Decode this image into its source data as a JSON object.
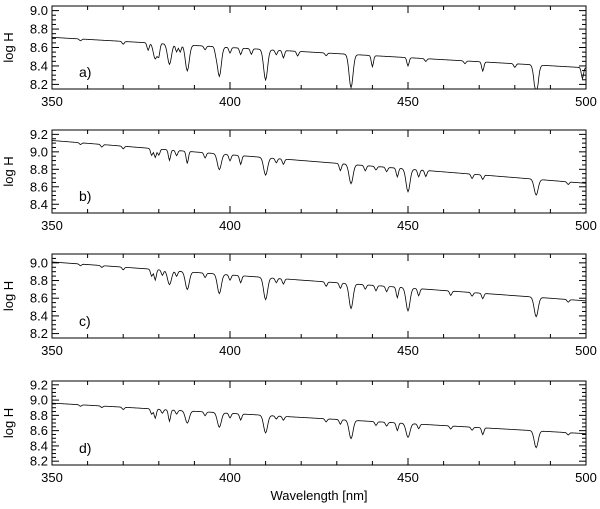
{
  "figure": {
    "xlabel": "Wavelength [nm]"
  },
  "chart_data": [
    {
      "type": "line",
      "panel_label": "a)",
      "ylabel": "log H",
      "xlim": [
        350,
        500
      ],
      "ylim": [
        8.15,
        9.05
      ],
      "yticks": [
        8.2,
        8.4,
        8.6,
        8.8,
        9.0
      ],
      "ytick_labels": [
        "8.2",
        "8.4",
        "8.6",
        "8.8",
        "9.0"
      ],
      "xticks": [
        350,
        400,
        450,
        500
      ],
      "xtick_labels": [
        "350",
        "400",
        "450",
        "500"
      ],
      "continuum": {
        "start": [
          350,
          8.71
        ],
        "end": [
          500,
          8.38
        ]
      },
      "lines": [
        [
          358,
          0.02
        ],
        [
          370,
          0.03
        ],
        [
          377,
          0.08
        ],
        [
          379,
          0.17
        ],
        [
          380,
          0.12
        ],
        [
          383,
          0.22
        ],
        [
          385,
          0.08
        ],
        [
          386,
          0.08
        ],
        [
          388,
          0.28
        ],
        [
          393,
          0.04
        ],
        [
          396,
          0.05
        ],
        [
          397,
          0.32
        ],
        [
          400,
          0.06
        ],
        [
          403,
          0.07
        ],
        [
          406,
          0.06
        ],
        [
          410,
          0.33
        ],
        [
          413,
          0.05
        ],
        [
          415,
          0.08
        ],
        [
          419,
          0.05
        ],
        [
          427,
          0.03
        ],
        [
          434,
          0.36
        ],
        [
          440,
          0.12
        ],
        [
          450,
          0.09
        ],
        [
          455,
          0.03
        ],
        [
          466,
          0.03
        ],
        [
          471,
          0.1
        ],
        [
          480,
          0.04
        ],
        [
          486,
          0.33
        ],
        [
          499,
          0.12
        ]
      ]
    },
    {
      "type": "line",
      "panel_label": "b)",
      "ylabel": "log H",
      "xlim": [
        350,
        500
      ],
      "ylim": [
        8.3,
        9.25
      ],
      "yticks": [
        8.4,
        8.6,
        8.8,
        9.0,
        9.2
      ],
      "ytick_labels": [
        "8.4",
        "8.6",
        "8.8",
        "9.0",
        "9.2"
      ],
      "xticks": [
        350,
        400,
        450,
        500
      ],
      "xtick_labels": [
        "350",
        "400",
        "450",
        "500"
      ],
      "continuum": {
        "start": [
          350,
          9.13
        ],
        "end": [
          500,
          8.64
        ]
      },
      "lines": [
        [
          358,
          0.02
        ],
        [
          364,
          0.03
        ],
        [
          370,
          0.03
        ],
        [
          378,
          0.08
        ],
        [
          379,
          0.1
        ],
        [
          380,
          0.07
        ],
        [
          383,
          0.12
        ],
        [
          385,
          0.06
        ],
        [
          388,
          0.14
        ],
        [
          393,
          0.06
        ],
        [
          397,
          0.18
        ],
        [
          400,
          0.07
        ],
        [
          403,
          0.1
        ],
        [
          410,
          0.2
        ],
        [
          413,
          0.05
        ],
        [
          415,
          0.06
        ],
        [
          431,
          0.08
        ],
        [
          434,
          0.22
        ],
        [
          438,
          0.06
        ],
        [
          441,
          0.04
        ],
        [
          444,
          0.05
        ],
        [
          447,
          0.1
        ],
        [
          450,
          0.26
        ],
        [
          453,
          0.08
        ],
        [
          455,
          0.07
        ],
        [
          468,
          0.05
        ],
        [
          471,
          0.05
        ],
        [
          486,
          0.18
        ],
        [
          495,
          0.03
        ]
      ]
    },
    {
      "type": "line",
      "panel_label": "c)",
      "ylabel": "log H",
      "xlim": [
        350,
        500
      ],
      "ylim": [
        8.15,
        9.1
      ],
      "yticks": [
        8.2,
        8.4,
        8.6,
        8.8,
        9.0
      ],
      "ytick_labels": [
        "8.2",
        "8.4",
        "8.6",
        "8.8",
        "9.0"
      ],
      "xticks": [
        350,
        400,
        450,
        500
      ],
      "xtick_labels": [
        "350",
        "400",
        "450",
        "500"
      ],
      "continuum": {
        "start": [
          350,
          9.01
        ],
        "end": [
          500,
          8.57
        ]
      },
      "lines": [
        [
          358,
          0.02
        ],
        [
          364,
          0.02
        ],
        [
          370,
          0.03
        ],
        [
          378,
          0.08
        ],
        [
          379,
          0.12
        ],
        [
          381,
          0.06
        ],
        [
          383,
          0.16
        ],
        [
          385,
          0.06
        ],
        [
          388,
          0.2
        ],
        [
          393,
          0.05
        ],
        [
          397,
          0.22
        ],
        [
          400,
          0.06
        ],
        [
          403,
          0.08
        ],
        [
          410,
          0.25
        ],
        [
          413,
          0.05
        ],
        [
          415,
          0.06
        ],
        [
          427,
          0.05
        ],
        [
          431,
          0.06
        ],
        [
          434,
          0.28
        ],
        [
          438,
          0.05
        ],
        [
          441,
          0.06
        ],
        [
          444,
          0.06
        ],
        [
          447,
          0.12
        ],
        [
          450,
          0.26
        ],
        [
          453,
          0.08
        ],
        [
          462,
          0.05
        ],
        [
          468,
          0.04
        ],
        [
          471,
          0.06
        ],
        [
          486,
          0.22
        ],
        [
          495,
          0.03
        ]
      ]
    },
    {
      "type": "line",
      "panel_label": "d)",
      "ylabel": "log H",
      "xlim": [
        350,
        500
      ],
      "ylim": [
        8.15,
        9.25
      ],
      "yticks": [
        8.2,
        8.4,
        8.6,
        8.8,
        9.0,
        9.2
      ],
      "ytick_labels": [
        "8.2",
        "8.4",
        "8.6",
        "8.8",
        "9.0",
        "9.2"
      ],
      "xticks": [
        350,
        400,
        450,
        500
      ],
      "xtick_labels": [
        "350",
        "400",
        "450",
        "500"
      ],
      "continuum": {
        "start": [
          350,
          8.96
        ],
        "end": [
          500,
          8.56
        ]
      },
      "lines": [
        [
          358,
          0.02
        ],
        [
          364,
          0.02
        ],
        [
          370,
          0.03
        ],
        [
          378,
          0.07
        ],
        [
          379,
          0.12
        ],
        [
          381,
          0.05
        ],
        [
          383,
          0.15
        ],
        [
          385,
          0.05
        ],
        [
          388,
          0.16
        ],
        [
          393,
          0.05
        ],
        [
          397,
          0.19
        ],
        [
          400,
          0.06
        ],
        [
          403,
          0.08
        ],
        [
          410,
          0.23
        ],
        [
          413,
          0.04
        ],
        [
          415,
          0.05
        ],
        [
          427,
          0.04
        ],
        [
          431,
          0.06
        ],
        [
          434,
          0.24
        ],
        [
          441,
          0.05
        ],
        [
          444,
          0.05
        ],
        [
          447,
          0.1
        ],
        [
          450,
          0.18
        ],
        [
          453,
          0.06
        ],
        [
          462,
          0.04
        ],
        [
          468,
          0.04
        ],
        [
          471,
          0.09
        ],
        [
          486,
          0.22
        ],
        [
          495,
          0.03
        ]
      ]
    }
  ]
}
